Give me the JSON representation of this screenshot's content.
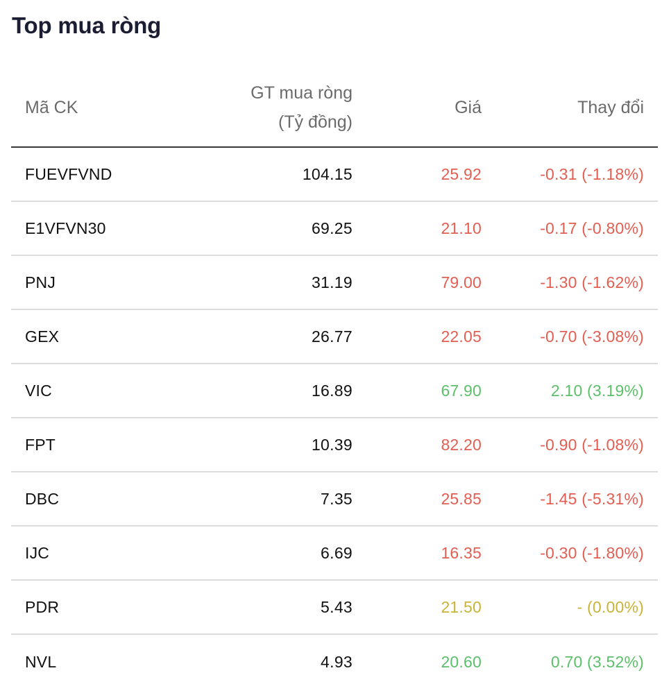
{
  "widget": {
    "title": "Top mua ròng"
  },
  "table": {
    "headers": {
      "symbol": "Mã CK",
      "value_line1": "GT mua ròng",
      "value_line2": "(Tỷ đồng)",
      "price": "Giá",
      "change": "Thay đổi"
    },
    "rows": [
      {
        "symbol": "FUEVFVND",
        "value": "104.15",
        "price": "25.92",
        "change": "-0.31 (-1.18%)",
        "trend": "down"
      },
      {
        "symbol": "E1VFVN30",
        "value": "69.25",
        "price": "21.10",
        "change": "-0.17 (-0.80%)",
        "trend": "down"
      },
      {
        "symbol": "PNJ",
        "value": "31.19",
        "price": "79.00",
        "change": "-1.30 (-1.62%)",
        "trend": "down"
      },
      {
        "symbol": "GEX",
        "value": "26.77",
        "price": "22.05",
        "change": "-0.70 (-3.08%)",
        "trend": "down"
      },
      {
        "symbol": "VIC",
        "value": "16.89",
        "price": "67.90",
        "change": "2.10 (3.19%)",
        "trend": "up"
      },
      {
        "symbol": "FPT",
        "value": "10.39",
        "price": "82.20",
        "change": "-0.90 (-1.08%)",
        "trend": "down"
      },
      {
        "symbol": "DBC",
        "value": "7.35",
        "price": "25.85",
        "change": "-1.45 (-5.31%)",
        "trend": "down"
      },
      {
        "symbol": "IJC",
        "value": "6.69",
        "price": "16.35",
        "change": "-0.30 (-1.80%)",
        "trend": "down"
      },
      {
        "symbol": "PDR",
        "value": "5.43",
        "price": "21.50",
        "change": "- (0.00%)",
        "trend": "flat"
      },
      {
        "symbol": "NVL",
        "value": "4.93",
        "price": "20.60",
        "change": "0.70 (3.52%)",
        "trend": "up"
      }
    ]
  },
  "colors": {
    "down": "#e35e52",
    "up": "#5cbf6a",
    "flat": "#c9b43a",
    "title": "#1b1d33"
  }
}
